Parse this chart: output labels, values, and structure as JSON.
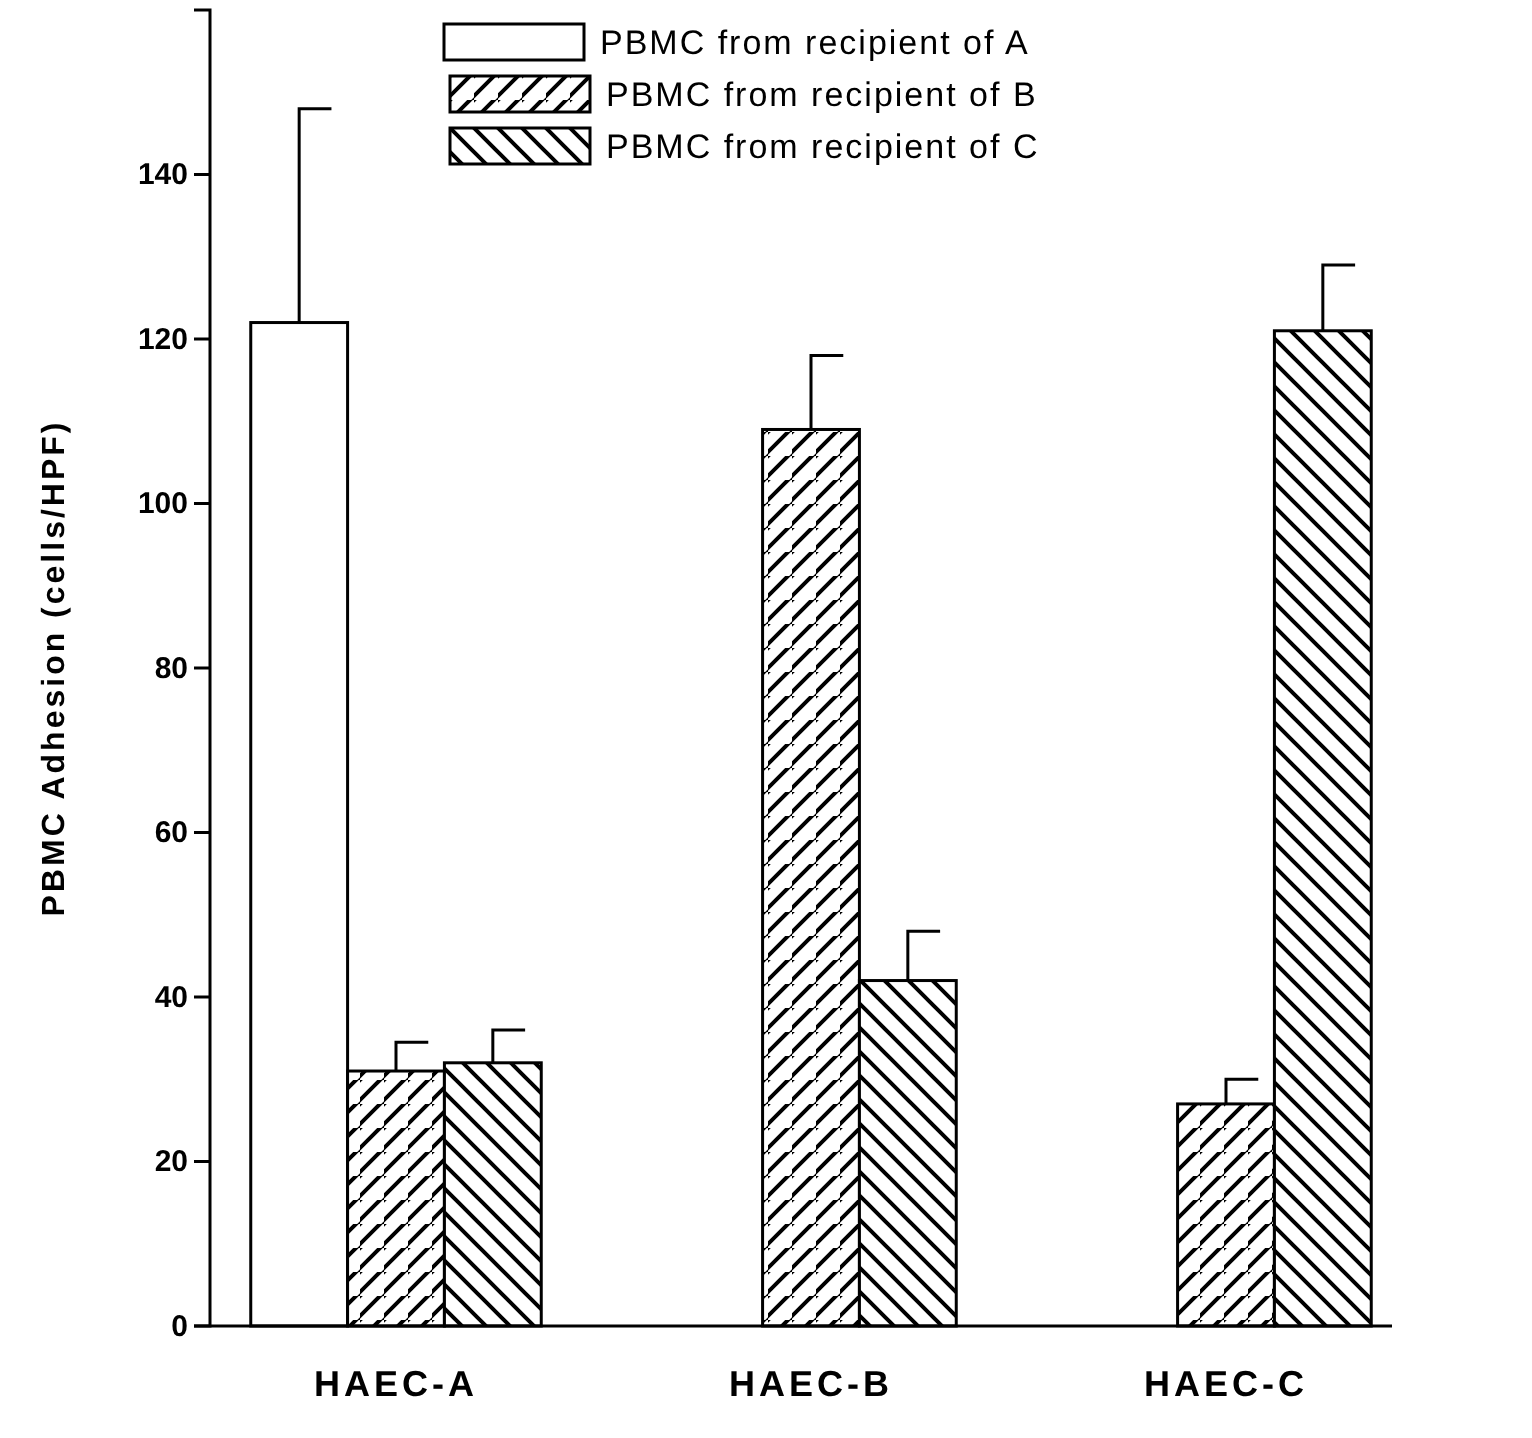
{
  "chart_data": {
    "type": "bar",
    "ylabel": "PBMC Adhesion (cells/HPF)",
    "categories": [
      "HAEC-A",
      "HAEC-B",
      "HAEC-C"
    ],
    "series": [
      {
        "name": "PBMC from recipient of A",
        "color": "#ffffff",
        "values": [
          122,
          null,
          null
        ],
        "errors": [
          [
            122,
            148
          ],
          null,
          null
        ]
      },
      {
        "name": "PBMC from recipient of B",
        "color": "#000000",
        "values": [
          31,
          109,
          27
        ],
        "errors": [
          [
            31,
            34.5
          ],
          [
            109,
            118
          ],
          [
            27,
            30
          ]
        ]
      },
      {
        "name": "PBMC from recipient of C",
        "color": "#000000",
        "values": [
          32,
          42,
          121
        ],
        "errors": [
          [
            32,
            36
          ],
          [
            42,
            48
          ],
          [
            121,
            129
          ]
        ]
      }
    ],
    "ylim": [
      0,
      160
    ],
    "yticks": [
      0,
      20,
      40,
      60,
      80,
      100,
      120,
      140
    ],
    "grid": false,
    "legend": "top"
  }
}
